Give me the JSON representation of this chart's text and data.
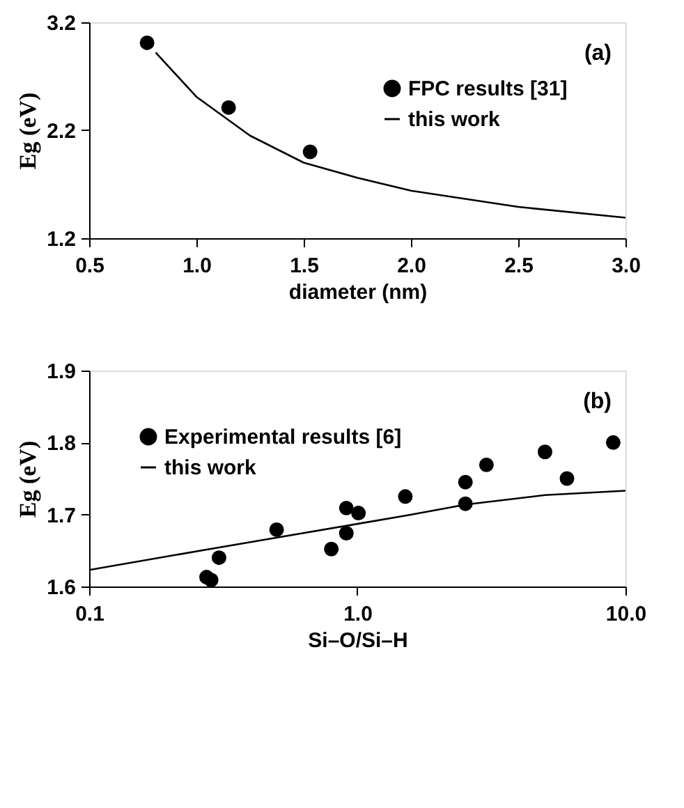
{
  "chart_data": [
    {
      "type": "line",
      "xlabel": "diameter (nm)",
      "ylabel": "Eg (eV)",
      "annotations": [
        "(a)"
      ],
      "xlim": [
        0.5,
        3.0
      ],
      "xticks": [
        0.5,
        {
          "value": 1.0,
          "label": "1.0"
        },
        1.5,
        {
          "value": 2.0,
          "label": "2.0"
        },
        2.5,
        {
          "value": 3.0,
          "label": "3.0"
        }
      ],
      "ylim": [
        1.2,
        3.2
      ],
      "yticks": [
        1.2,
        2.2,
        3.2
      ],
      "legend": "top right",
      "grid": false,
      "series": [
        {
          "name": "FPC results [31]",
          "type": "scatter",
          "marker": "circle",
          "color": "#000000",
          "x": [
            0.77,
            1.15,
            1.53
          ],
          "values": [
            3.01,
            2.41,
            2.0
          ]
        },
        {
          "name": "this work",
          "color": "#000000",
          "x": [
            0.81,
            1.0,
            1.25,
            1.5,
            1.75,
            2.0,
            2.5,
            3.0
          ],
          "values": [
            2.92,
            2.51,
            2.15,
            1.9,
            1.76,
            1.64,
            1.49,
            1.39
          ]
        }
      ]
    },
    {
      "type": "line",
      "xlabel": "Si–O/Si–H",
      "ylabel": "Eg (eV)",
      "annotations": [
        "(b)"
      ],
      "log": "x",
      "xlim": [
        0.1,
        10.0
      ],
      "xticks": [
        {
          "value": 0.1,
          "label": "0.1"
        },
        {
          "value": 1,
          "label": "1.0"
        },
        {
          "value": 10,
          "label": "10.0"
        }
      ],
      "ylim": [
        1.6,
        1.9
      ],
      "yticks": [
        1.6,
        1.7,
        1.8,
        1.9
      ],
      "legend": "top left",
      "grid": false,
      "series": [
        {
          "name": "Experimental results [6]",
          "type": "scatter",
          "marker": "circle",
          "color": "#000000",
          "x": [
            0.274,
            0.285,
            0.305,
            0.5,
            0.8,
            0.91,
            0.91,
            1.01,
            1.51,
            2.53,
            2.53,
            3.03,
            5.01,
            6.05,
            9.0
          ],
          "values": [
            1.613,
            1.609,
            1.64,
            1.679,
            1.652,
            1.709,
            1.674,
            1.702,
            1.725,
            1.745,
            1.715,
            1.769,
            1.787,
            1.75,
            1.8
          ]
        },
        {
          "name": "this work",
          "color": "#000000",
          "x": [
            0.1,
            0.302,
            1.0,
            1.54,
            2.55,
            5.01,
            10.0
          ],
          "values": [
            1.623,
            1.654,
            1.687,
            1.699,
            1.714,
            1.727,
            1.733
          ]
        }
      ]
    }
  ]
}
